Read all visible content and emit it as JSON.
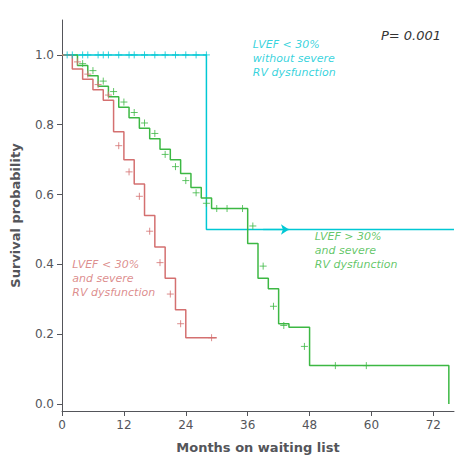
{
  "chart_data": {
    "type": "step",
    "xlabel": "Months on waiting list",
    "ylabel": "Survival probability",
    "xlim": [
      0,
      76
    ],
    "ylim": [
      -0.02,
      1.1
    ],
    "xticks": [
      0,
      12,
      24,
      36,
      48,
      60,
      72
    ],
    "yticks": [
      {
        "value": 0.0,
        "label": "0.0"
      },
      0.2,
      0.4,
      0.6,
      0.8,
      {
        "value": 1.0,
        "label": "1.0"
      }
    ],
    "grid": false,
    "marker": "plus",
    "annotations": [
      {
        "text": "LVEF < 30%\nwithout severe\nRV dysfunction",
        "x": 37,
        "y": 1.05,
        "color": "#00c8d4"
      },
      {
        "text": "LVEF > 30%\nand severe\nRV dysfunction",
        "x": 49,
        "y": 0.5,
        "color": "#3cb843"
      },
      {
        "text": "LVEF < 30%\nand severe\nRV dysfunction",
        "x": 2,
        "y": 0.42,
        "color": "#d47070"
      },
      {
        "text": "P= 0.001"
      }
    ],
    "series": [
      {
        "color": "#00c8d4",
        "x": [
          0,
          1,
          1,
          2,
          2,
          3,
          3,
          4,
          4,
          5,
          5,
          6,
          6,
          7,
          7,
          8,
          8,
          9,
          9,
          10,
          10,
          11,
          11,
          12,
          12,
          13,
          13,
          14,
          14,
          15,
          15,
          16,
          16,
          17,
          17,
          18,
          18,
          19,
          19,
          20,
          20,
          21,
          21,
          22,
          22,
          23,
          23,
          24,
          24,
          25,
          25,
          26,
          26,
          27,
          27,
          28,
          28,
          34,
          34,
          76
        ],
        "y": [
          1.0,
          1.0,
          1.0,
          1.0,
          1.0,
          1.0,
          1.0,
          1.0,
          1.0,
          1.0,
          1.0,
          1.0,
          1.0,
          1.0,
          1.0,
          1.0,
          1.0,
          1.0,
          1.0,
          1.0,
          1.0,
          1.0,
          1.0,
          1.0,
          1.0,
          1.0,
          1.0,
          1.0,
          1.0,
          1.0,
          1.0,
          1.0,
          1.0,
          1.0,
          1.0,
          1.0,
          1.0,
          1.0,
          1.0,
          1.0,
          1.0,
          1.0,
          1.0,
          1.0,
          1.0,
          1.0,
          1.0,
          1.0,
          1.0,
          1.0,
          1.0,
          1.0,
          1.0,
          1.0,
          1.0,
          1.0,
          0.5,
          0.5,
          0.5,
          0.5
        ],
        "censors_x": [
          1,
          2,
          4,
          5,
          7,
          8,
          9,
          11,
          13,
          14,
          16,
          18,
          20,
          22,
          24,
          26,
          28
        ],
        "censors_y": [
          1.0,
          1.0,
          1.0,
          1.0,
          1.0,
          1.0,
          1.0,
          1.0,
          1.0,
          1.0,
          1.0,
          1.0,
          1.0,
          1.0,
          1.0,
          1.0,
          1.0
        ],
        "arrow": {
          "x_start": 39,
          "x_end": 44,
          "y": 0.5
        }
      },
      {
        "color": "#3cb843",
        "x": [
          0,
          3,
          3,
          5,
          5,
          7,
          7,
          9,
          9,
          11,
          11,
          13,
          13,
          15,
          15,
          17,
          17,
          19,
          19,
          21,
          21,
          23,
          23,
          25,
          25,
          27,
          27,
          29,
          29,
          31,
          31,
          33,
          33,
          36,
          36,
          38,
          38,
          40,
          40,
          42,
          42,
          44,
          44,
          46,
          46,
          48,
          48,
          54,
          54,
          60,
          60,
          75,
          75
        ],
        "y": [
          1.0,
          1.0,
          0.97,
          0.97,
          0.94,
          0.94,
          0.91,
          0.91,
          0.88,
          0.88,
          0.85,
          0.85,
          0.82,
          0.82,
          0.79,
          0.79,
          0.76,
          0.76,
          0.73,
          0.73,
          0.7,
          0.7,
          0.66,
          0.66,
          0.62,
          0.62,
          0.59,
          0.59,
          0.56,
          0.56,
          0.56,
          0.56,
          0.56,
          0.56,
          0.46,
          0.46,
          0.36,
          0.36,
          0.33,
          0.33,
          0.23,
          0.23,
          0.22,
          0.22,
          0.22,
          0.22,
          0.11,
          0.11,
          0.11,
          0.11,
          0.11,
          0.11,
          0.0
        ],
        "censors_x": [
          4,
          6,
          8,
          10,
          12,
          14,
          16,
          18,
          20,
          22,
          24,
          26,
          28,
          30,
          32,
          35,
          37,
          39,
          41,
          43,
          47,
          53,
          59
        ],
        "censors_y": [
          0.975,
          0.955,
          0.925,
          0.895,
          0.865,
          0.835,
          0.805,
          0.775,
          0.715,
          0.68,
          0.64,
          0.605,
          0.575,
          0.56,
          0.56,
          0.56,
          0.51,
          0.395,
          0.28,
          0.225,
          0.165,
          0.11,
          0.11
        ]
      },
      {
        "color": "#d47070",
        "x": [
          0,
          2,
          2,
          4,
          4,
          6,
          6,
          8,
          8,
          10,
          10,
          12,
          12,
          14,
          14,
          16,
          16,
          18,
          18,
          20,
          20,
          22,
          22,
          24,
          24,
          30,
          30
        ],
        "y": [
          1.0,
          1.0,
          0.96,
          0.96,
          0.93,
          0.93,
          0.9,
          0.9,
          0.87,
          0.87,
          0.78,
          0.78,
          0.7,
          0.7,
          0.63,
          0.63,
          0.54,
          0.54,
          0.45,
          0.45,
          0.36,
          0.36,
          0.27,
          0.27,
          0.19,
          0.19,
          0.19
        ],
        "censors_x": [
          3,
          5,
          7,
          9,
          11,
          13,
          15,
          17,
          19,
          21,
          23,
          29
        ],
        "censors_y": [
          0.98,
          0.945,
          0.915,
          0.885,
          0.74,
          0.665,
          0.595,
          0.495,
          0.405,
          0.315,
          0.23,
          0.19
        ]
      }
    ]
  }
}
